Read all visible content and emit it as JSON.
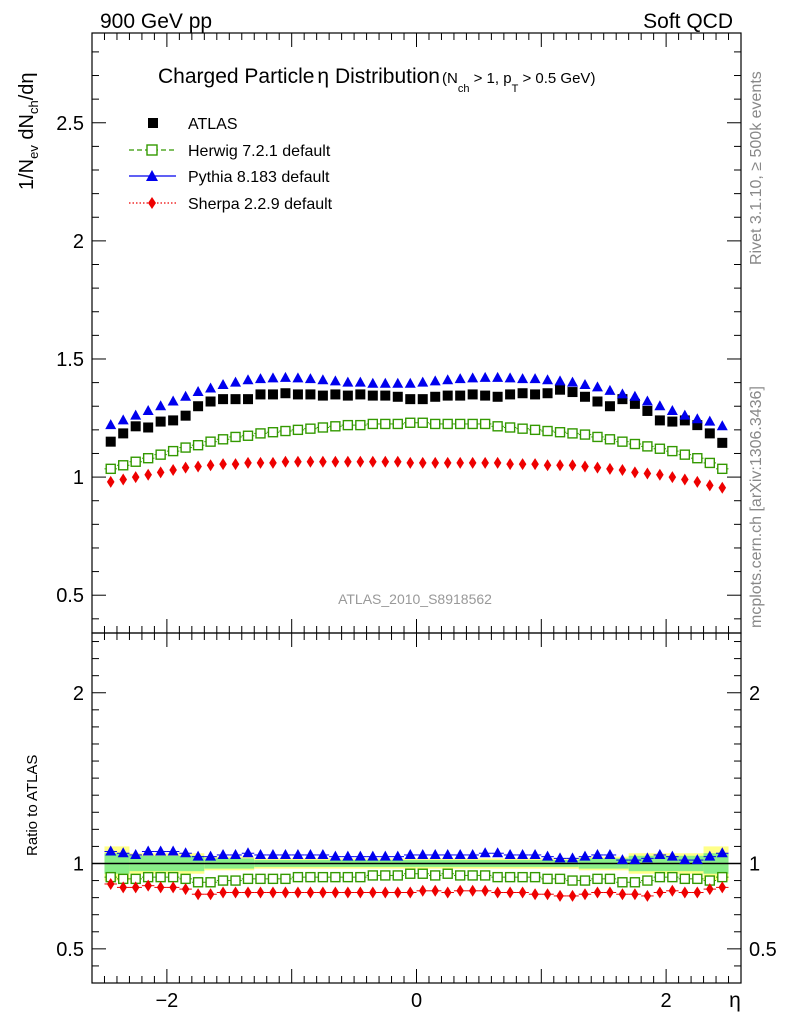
{
  "header": {
    "left": "900 GeV pp",
    "right": "Soft QCD"
  },
  "title": {
    "main": "Charged Particle",
    "eta": "η",
    "main2": " Distribution",
    "cut_open": "(N",
    "cut_ch": "ch",
    "cut_mid": " > 1, p",
    "cut_T": "T",
    "cut_end": " > 0.5 GeV)"
  },
  "ylabel": {
    "a": "1/N",
    "ev": "ev",
    "b": " dN",
    "ch": "ch",
    "c": "/dη"
  },
  "ratio_ylabel": "Ratio to ATLAS",
  "xlabel": "η",
  "analysis_tag": "ATLAS_2010_S8918562",
  "side_text": {
    "rivet": "Rivet 3.1.10, ≥ 500k events",
    "mcplots": "mcplots.cern.ch [arXiv:1306.3436]"
  },
  "colors": {
    "atlas": "#000000",
    "herwig": "#339900",
    "pythia": "#0000ee",
    "sherpa": "#ee0000"
  },
  "chart_data": [
    {
      "type": "scatter",
      "title": "Charged Particle η Distribution (N_ch > 1, p_T > 0.5 GeV)",
      "xlabel": "η",
      "ylabel": "1/N_ev dN_ch/dη",
      "xlim": [
        -2.6,
        2.6
      ],
      "ylim": [
        0.34,
        2.88
      ],
      "yticks": [
        0.5,
        1,
        1.5,
        2,
        2.5
      ],
      "ytick_labels": [
        "0.5",
        "1",
        "1.5",
        "2",
        "2.5"
      ],
      "legend_position": "top-left",
      "x": [
        -2.45,
        -2.35,
        -2.25,
        -2.15,
        -2.05,
        -1.95,
        -1.85,
        -1.75,
        -1.65,
        -1.55,
        -1.45,
        -1.35,
        -1.25,
        -1.15,
        -1.05,
        -0.95,
        -0.85,
        -0.75,
        -0.65,
        -0.55,
        -0.45,
        -0.35,
        -0.25,
        -0.15,
        -0.05,
        0.05,
        0.15,
        0.25,
        0.35,
        0.45,
        0.55,
        0.65,
        0.75,
        0.85,
        0.95,
        1.05,
        1.15,
        1.25,
        1.35,
        1.45,
        1.55,
        1.65,
        1.75,
        1.85,
        1.95,
        2.05,
        2.15,
        2.25,
        2.35,
        2.45
      ],
      "series": [
        {
          "name": "ATLAS",
          "legend": "ATLAS",
          "marker": "square",
          "line": "none",
          "values": [
            1.15,
            1.185,
            1.215,
            1.21,
            1.235,
            1.24,
            1.26,
            1.3,
            1.32,
            1.33,
            1.33,
            1.33,
            1.35,
            1.35,
            1.355,
            1.35,
            1.35,
            1.345,
            1.35,
            1.345,
            1.35,
            1.345,
            1.345,
            1.34,
            1.33,
            1.33,
            1.34,
            1.345,
            1.345,
            1.35,
            1.345,
            1.34,
            1.35,
            1.355,
            1.35,
            1.355,
            1.37,
            1.36,
            1.34,
            1.32,
            1.3,
            1.33,
            1.31,
            1.28,
            1.24,
            1.235,
            1.24,
            1.22,
            1.185,
            1.145
          ]
        },
        {
          "name": "Herwig 7.2.1 default",
          "legend": "Herwig 7.2.1 default",
          "marker": "open-square",
          "line": "dashed",
          "values": [
            1.035,
            1.05,
            1.065,
            1.08,
            1.095,
            1.11,
            1.125,
            1.135,
            1.15,
            1.16,
            1.17,
            1.175,
            1.185,
            1.19,
            1.195,
            1.2,
            1.205,
            1.21,
            1.215,
            1.22,
            1.22,
            1.225,
            1.225,
            1.225,
            1.23,
            1.23,
            1.225,
            1.225,
            1.225,
            1.225,
            1.225,
            1.215,
            1.21,
            1.205,
            1.2,
            1.195,
            1.19,
            1.185,
            1.18,
            1.17,
            1.16,
            1.15,
            1.14,
            1.13,
            1.12,
            1.11,
            1.095,
            1.08,
            1.06,
            1.035
          ]
        },
        {
          "name": "Pythia 8.183 default",
          "legend": "Pythia 8.183 default",
          "marker": "triangle",
          "line": "solid",
          "values": [
            1.22,
            1.24,
            1.26,
            1.28,
            1.3,
            1.32,
            1.34,
            1.36,
            1.375,
            1.39,
            1.4,
            1.41,
            1.415,
            1.418,
            1.42,
            1.418,
            1.415,
            1.41,
            1.405,
            1.4,
            1.4,
            1.395,
            1.395,
            1.395,
            1.395,
            1.4,
            1.405,
            1.41,
            1.415,
            1.418,
            1.42,
            1.42,
            1.418,
            1.415,
            1.415,
            1.41,
            1.405,
            1.4,
            1.39,
            1.38,
            1.365,
            1.35,
            1.34,
            1.32,
            1.3,
            1.28,
            1.26,
            1.245,
            1.235,
            1.215
          ]
        },
        {
          "name": "Sherpa 2.2.9 default",
          "legend": "Sherpa 2.2.9 default",
          "marker": "diamond",
          "line": "dotted",
          "values": [
            0.98,
            0.99,
            1.0,
            1.01,
            1.02,
            1.03,
            1.04,
            1.045,
            1.05,
            1.055,
            1.055,
            1.06,
            1.06,
            1.06,
            1.065,
            1.065,
            1.065,
            1.065,
            1.065,
            1.065,
            1.065,
            1.065,
            1.065,
            1.065,
            1.06,
            1.06,
            1.06,
            1.06,
            1.06,
            1.06,
            1.06,
            1.06,
            1.055,
            1.055,
            1.055,
            1.05,
            1.05,
            1.05,
            1.045,
            1.04,
            1.035,
            1.03,
            1.02,
            1.015,
            1.01,
            1.0,
            0.99,
            0.98,
            0.965,
            0.955
          ]
        }
      ]
    },
    {
      "type": "scatter",
      "title": "",
      "xlabel": "η",
      "ylabel": "Ratio to ATLAS",
      "xlim": [
        -2.6,
        2.6
      ],
      "ylim": [
        0.3,
        2.35
      ],
      "yticks": [
        0.5,
        1,
        2
      ],
      "ytick_labels": [
        "0.5",
        "1",
        "2"
      ],
      "xticks": [
        -2,
        0,
        2
      ],
      "xtick_labels": [
        "−2",
        "0",
        "2"
      ],
      "reference_line": 1,
      "uncertainty_bands": {
        "x_edges": [
          -2.5,
          -2.3,
          -1.7,
          -1.3,
          1.3,
          1.7,
          2.3,
          2.5
        ],
        "total": [
          0.1,
          0.06,
          0.04,
          0.03,
          0.04,
          0.06,
          0.1
        ],
        "stat": [
          0.06,
          0.045,
          0.03,
          0.02,
          0.03,
          0.045,
          0.06
        ]
      },
      "x": [
        -2.45,
        -2.35,
        -2.25,
        -2.15,
        -2.05,
        -1.95,
        -1.85,
        -1.75,
        -1.65,
        -1.55,
        -1.45,
        -1.35,
        -1.25,
        -1.15,
        -1.05,
        -0.95,
        -0.85,
        -0.75,
        -0.65,
        -0.55,
        -0.45,
        -0.35,
        -0.25,
        -0.15,
        -0.05,
        0.05,
        0.15,
        0.25,
        0.35,
        0.45,
        0.55,
        0.65,
        0.75,
        0.85,
        0.95,
        1.05,
        1.15,
        1.25,
        1.35,
        1.45,
        1.55,
        1.65,
        1.75,
        1.85,
        1.95,
        2.05,
        2.15,
        2.25,
        2.35,
        2.45
      ],
      "series": [
        {
          "name": "Herwig 7.2.1 default / ATLAS",
          "marker": "open-square",
          "values": [
            0.92,
            0.91,
            0.91,
            0.92,
            0.92,
            0.92,
            0.91,
            0.89,
            0.89,
            0.9,
            0.9,
            0.91,
            0.91,
            0.91,
            0.91,
            0.92,
            0.92,
            0.92,
            0.92,
            0.92,
            0.92,
            0.93,
            0.93,
            0.93,
            0.94,
            0.94,
            0.93,
            0.94,
            0.93,
            0.93,
            0.93,
            0.92,
            0.92,
            0.92,
            0.92,
            0.91,
            0.91,
            0.9,
            0.9,
            0.91,
            0.91,
            0.89,
            0.89,
            0.9,
            0.92,
            0.92,
            0.91,
            0.91,
            0.9,
            0.92
          ]
        },
        {
          "name": "Pythia 8.183 default / ATLAS",
          "marker": "triangle",
          "values": [
            1.07,
            1.06,
            1.05,
            1.07,
            1.07,
            1.07,
            1.06,
            1.04,
            1.04,
            1.05,
            1.05,
            1.06,
            1.05,
            1.05,
            1.05,
            1.05,
            1.05,
            1.05,
            1.04,
            1.04,
            1.04,
            1.04,
            1.04,
            1.04,
            1.05,
            1.05,
            1.05,
            1.05,
            1.05,
            1.05,
            1.06,
            1.06,
            1.05,
            1.05,
            1.05,
            1.04,
            1.03,
            1.03,
            1.04,
            1.05,
            1.05,
            1.02,
            1.02,
            1.03,
            1.05,
            1.04,
            1.02,
            1.02,
            1.04,
            1.06
          ]
        },
        {
          "name": "Sherpa 2.2.9 default / ATLAS",
          "marker": "diamond",
          "values": [
            0.88,
            0.86,
            0.86,
            0.87,
            0.86,
            0.86,
            0.85,
            0.82,
            0.82,
            0.83,
            0.83,
            0.83,
            0.83,
            0.83,
            0.83,
            0.83,
            0.83,
            0.83,
            0.83,
            0.83,
            0.83,
            0.83,
            0.83,
            0.83,
            0.83,
            0.84,
            0.84,
            0.83,
            0.84,
            0.84,
            0.84,
            0.83,
            0.83,
            0.83,
            0.82,
            0.82,
            0.81,
            0.81,
            0.82,
            0.83,
            0.83,
            0.82,
            0.82,
            0.81,
            0.83,
            0.84,
            0.83,
            0.83,
            0.85,
            0.86
          ]
        }
      ]
    }
  ]
}
